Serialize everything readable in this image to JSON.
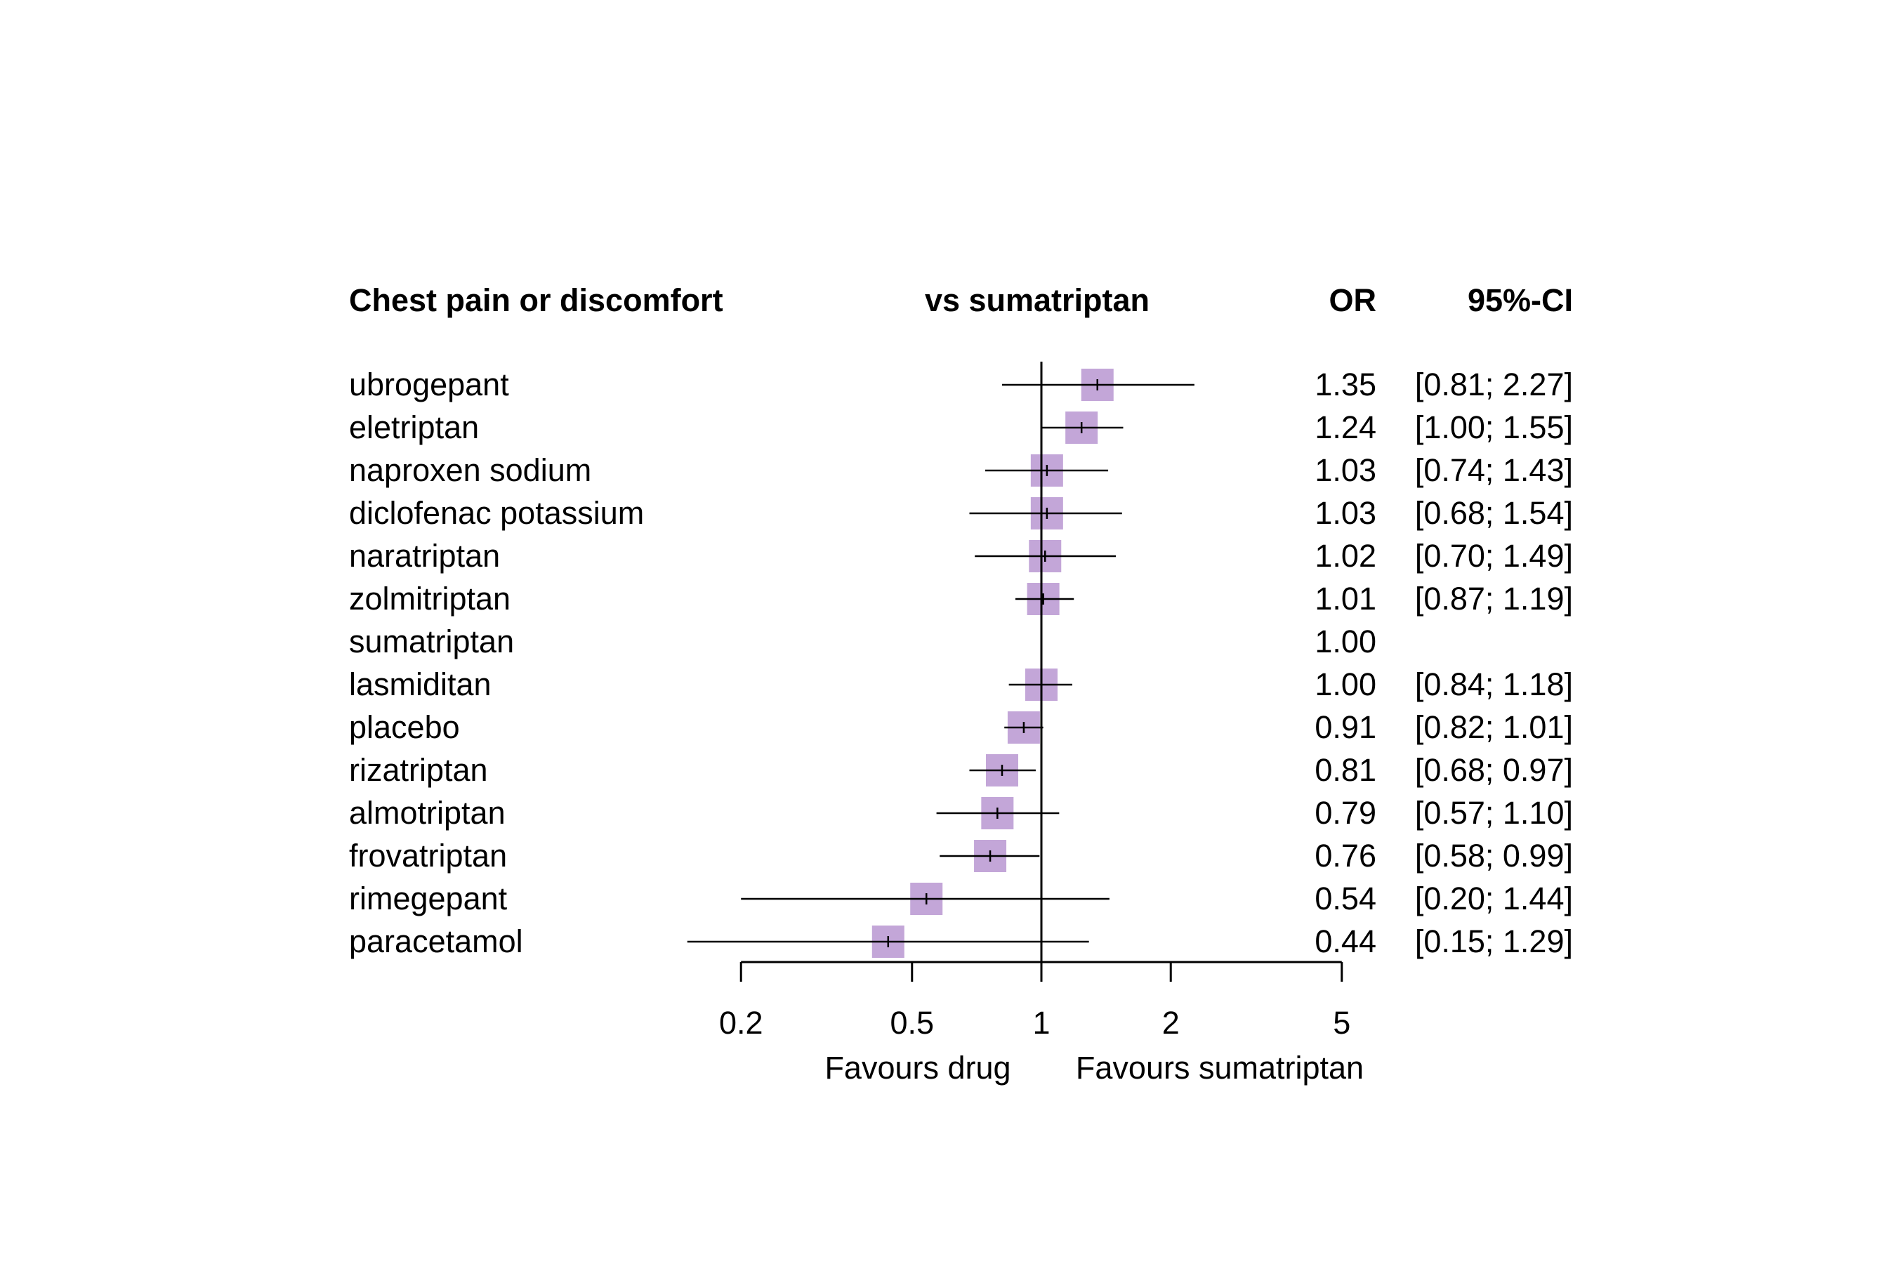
{
  "chart_data": {
    "type": "forest",
    "title": "Chest pain or discomfort",
    "comparison_label": "vs sumatriptan",
    "columns": {
      "estimate": "OR",
      "interval": "95%-CI"
    },
    "x_scale": "log",
    "reference_value": 1,
    "xlim": [
      0.2,
      5
    ],
    "x_ticks": [
      {
        "value": 0.2,
        "label": "0.2"
      },
      {
        "value": 0.5,
        "label": "0.5"
      },
      {
        "value": 1,
        "label": "1"
      },
      {
        "value": 2,
        "label": "2"
      },
      {
        "value": 5,
        "label": "5"
      }
    ],
    "direction_labels": {
      "left": "Favours drug",
      "right": "Favours sumatriptan"
    },
    "box_color": "#c3a6d8",
    "rows": [
      {
        "name": "ubrogepant",
        "or": 1.35,
        "lower": 0.81,
        "upper": 2.27,
        "or_text": "1.35",
        "ci_text": "[0.81; 2.27]"
      },
      {
        "name": "eletriptan",
        "or": 1.24,
        "lower": 1.0,
        "upper": 1.55,
        "or_text": "1.24",
        "ci_text": "[1.00; 1.55]"
      },
      {
        "name": "naproxen sodium",
        "or": 1.03,
        "lower": 0.74,
        "upper": 1.43,
        "or_text": "1.03",
        "ci_text": "[0.74; 1.43]"
      },
      {
        "name": "diclofenac potassium",
        "or": 1.03,
        "lower": 0.68,
        "upper": 1.54,
        "or_text": "1.03",
        "ci_text": "[0.68; 1.54]"
      },
      {
        "name": "naratriptan",
        "or": 1.02,
        "lower": 0.7,
        "upper": 1.49,
        "or_text": "1.02",
        "ci_text": "[0.70; 1.49]"
      },
      {
        "name": "zolmitriptan",
        "or": 1.01,
        "lower": 0.87,
        "upper": 1.19,
        "or_text": "1.01",
        "ci_text": "[0.87; 1.19]"
      },
      {
        "name": "sumatriptan",
        "or": 1.0,
        "lower": null,
        "upper": null,
        "or_text": "1.00",
        "ci_text": ""
      },
      {
        "name": "lasmiditan",
        "or": 1.0,
        "lower": 0.84,
        "upper": 1.18,
        "or_text": "1.00",
        "ci_text": "[0.84; 1.18]"
      },
      {
        "name": "placebo",
        "or": 0.91,
        "lower": 0.82,
        "upper": 1.01,
        "or_text": "0.91",
        "ci_text": "[0.82; 1.01]"
      },
      {
        "name": "rizatriptan",
        "or": 0.81,
        "lower": 0.68,
        "upper": 0.97,
        "or_text": "0.81",
        "ci_text": "[0.68; 0.97]"
      },
      {
        "name": "almotriptan",
        "or": 0.79,
        "lower": 0.57,
        "upper": 1.1,
        "or_text": "0.79",
        "ci_text": "[0.57; 1.10]"
      },
      {
        "name": "frovatriptan",
        "or": 0.76,
        "lower": 0.58,
        "upper": 0.99,
        "or_text": "0.76",
        "ci_text": "[0.58; 0.99]"
      },
      {
        "name": "rimegepant",
        "or": 0.54,
        "lower": 0.2,
        "upper": 1.44,
        "or_text": "0.54",
        "ci_text": "[0.20; 1.44]"
      },
      {
        "name": "paracetamol",
        "or": 0.44,
        "lower": 0.15,
        "upper": 1.29,
        "or_text": "0.44",
        "ci_text": "[0.15; 1.29]"
      }
    ]
  }
}
